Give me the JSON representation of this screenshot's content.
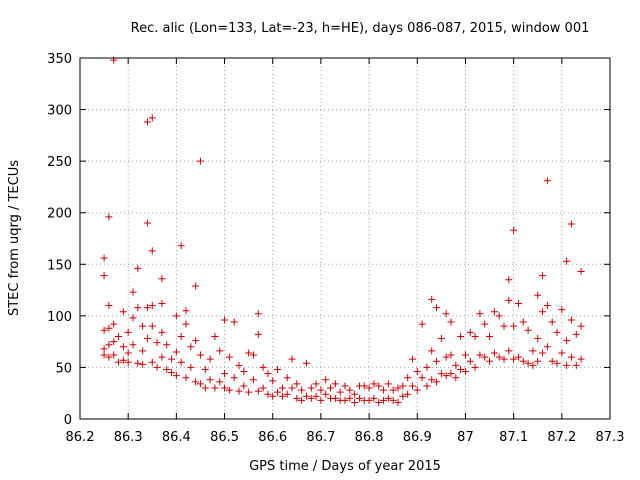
{
  "chart_data": {
    "type": "scatter",
    "title": "Rec. alic (Lon=133, Lat=-23, h=HE), days 086-087, 2015, window 001",
    "xlabel": "GPS time / Days of year 2015",
    "ylabel": "STEC from uqrg / TECUs",
    "xlim": [
      86.2,
      87.3
    ],
    "ylim": [
      0,
      350
    ],
    "xticks": [
      "86.2",
      "86.3",
      "86.4",
      "86.5",
      "86.6",
      "86.7",
      "86.8",
      "86.9",
      "87",
      "87.1",
      "87.2",
      "87.3"
    ],
    "yticks": [
      "0",
      "50",
      "100",
      "150",
      "200",
      "250",
      "300",
      "350"
    ],
    "grid": true,
    "marker": "+",
    "color": "#cc0000",
    "points": [
      [
        86.25,
        68
      ],
      [
        86.25,
        62
      ],
      [
        86.25,
        86
      ],
      [
        86.25,
        139
      ],
      [
        86.25,
        156
      ],
      [
        86.26,
        196
      ],
      [
        86.26,
        110
      ],
      [
        86.26,
        88
      ],
      [
        86.26,
        72
      ],
      [
        86.26,
        60
      ],
      [
        86.27,
        348
      ],
      [
        86.27,
        92
      ],
      [
        86.27,
        75
      ],
      [
        86.27,
        62
      ],
      [
        86.28,
        55
      ],
      [
        86.28,
        80
      ],
      [
        86.29,
        104
      ],
      [
        86.29,
        70
      ],
      [
        86.29,
        57
      ],
      [
        86.3,
        84
      ],
      [
        86.3,
        64
      ],
      [
        86.3,
        55
      ],
      [
        86.31,
        123
      ],
      [
        86.31,
        98
      ],
      [
        86.31,
        72
      ],
      [
        86.32,
        54
      ],
      [
        86.32,
        146
      ],
      [
        86.32,
        108
      ],
      [
        86.33,
        90
      ],
      [
        86.33,
        66
      ],
      [
        86.33,
        53
      ],
      [
        86.34,
        288
      ],
      [
        86.34,
        190
      ],
      [
        86.34,
        108
      ],
      [
        86.34,
        78
      ],
      [
        86.35,
        292
      ],
      [
        86.35,
        163
      ],
      [
        86.35,
        110
      ],
      [
        86.35,
        90
      ],
      [
        86.35,
        55
      ],
      [
        86.36,
        74
      ],
      [
        86.36,
        50
      ],
      [
        86.37,
        136
      ],
      [
        86.37,
        112
      ],
      [
        86.37,
        84
      ],
      [
        86.37,
        60
      ],
      [
        86.38,
        48
      ],
      [
        86.38,
        72
      ],
      [
        86.39,
        58
      ],
      [
        86.39,
        45
      ],
      [
        86.4,
        100
      ],
      [
        86.4,
        65
      ],
      [
        86.4,
        42
      ],
      [
        86.41,
        168
      ],
      [
        86.41,
        80
      ],
      [
        86.41,
        55
      ],
      [
        86.42,
        105
      ],
      [
        86.42,
        92
      ],
      [
        86.42,
        40
      ],
      [
        86.43,
        70
      ],
      [
        86.43,
        50
      ],
      [
        86.44,
        129
      ],
      [
        86.44,
        76
      ],
      [
        86.44,
        36
      ],
      [
        86.45,
        250
      ],
      [
        86.45,
        62
      ],
      [
        86.45,
        34
      ],
      [
        86.46,
        48
      ],
      [
        86.46,
        30
      ],
      [
        86.47,
        58
      ],
      [
        86.47,
        38
      ],
      [
        86.48,
        80
      ],
      [
        86.48,
        30
      ],
      [
        86.49,
        66
      ],
      [
        86.49,
        36
      ],
      [
        86.5,
        96
      ],
      [
        86.5,
        44
      ],
      [
        86.5,
        30
      ],
      [
        86.51,
        60
      ],
      [
        86.51,
        28
      ],
      [
        86.52,
        94
      ],
      [
        86.52,
        40
      ],
      [
        86.53,
        52
      ],
      [
        86.53,
        27
      ],
      [
        86.54,
        46
      ],
      [
        86.54,
        32
      ],
      [
        86.55,
        64
      ],
      [
        86.55,
        26
      ],
      [
        86.56,
        62
      ],
      [
        86.56,
        38
      ],
      [
        86.57,
        102
      ],
      [
        86.57,
        82
      ],
      [
        86.57,
        27
      ],
      [
        86.58,
        50
      ],
      [
        86.58,
        30
      ],
      [
        86.59,
        44
      ],
      [
        86.59,
        24
      ],
      [
        86.6,
        37
      ],
      [
        86.6,
        22
      ],
      [
        86.61,
        48
      ],
      [
        86.61,
        26
      ],
      [
        86.62,
        30
      ],
      [
        86.62,
        22
      ],
      [
        86.63,
        40
      ],
      [
        86.63,
        24
      ],
      [
        86.64,
        58
      ],
      [
        86.64,
        30
      ],
      [
        86.65,
        34
      ],
      [
        86.65,
        20
      ],
      [
        86.66,
        28
      ],
      [
        86.66,
        18
      ],
      [
        86.67,
        54
      ],
      [
        86.67,
        22
      ],
      [
        86.68,
        30
      ],
      [
        86.68,
        20
      ],
      [
        86.69,
        34
      ],
      [
        86.69,
        22
      ],
      [
        86.7,
        28
      ],
      [
        86.7,
        18
      ],
      [
        86.71,
        38
      ],
      [
        86.71,
        24
      ],
      [
        86.72,
        30
      ],
      [
        86.72,
        20
      ],
      [
        86.73,
        34
      ],
      [
        86.73,
        20
      ],
      [
        86.74,
        26
      ],
      [
        86.74,
        18
      ],
      [
        86.75,
        32
      ],
      [
        86.75,
        18
      ],
      [
        86.76,
        28
      ],
      [
        86.76,
        20
      ],
      [
        86.77,
        24
      ],
      [
        86.77,
        16
      ],
      [
        86.78,
        32
      ],
      [
        86.78,
        20
      ],
      [
        86.79,
        32
      ],
      [
        86.79,
        18
      ],
      [
        86.8,
        30
      ],
      [
        86.8,
        18
      ],
      [
        86.81,
        34
      ],
      [
        86.81,
        20
      ],
      [
        86.82,
        32
      ],
      [
        86.82,
        16
      ],
      [
        86.83,
        28
      ],
      [
        86.83,
        18
      ],
      [
        86.84,
        34
      ],
      [
        86.84,
        20
      ],
      [
        86.85,
        28
      ],
      [
        86.85,
        18
      ],
      [
        86.86,
        30
      ],
      [
        86.86,
        16
      ],
      [
        86.87,
        32
      ],
      [
        86.87,
        22
      ],
      [
        86.88,
        40
      ],
      [
        86.88,
        24
      ],
      [
        86.89,
        58
      ],
      [
        86.89,
        32
      ],
      [
        86.9,
        46
      ],
      [
        86.9,
        28
      ],
      [
        86.91,
        92
      ],
      [
        86.91,
        40
      ],
      [
        86.92,
        50
      ],
      [
        86.92,
        32
      ],
      [
        86.93,
        116
      ],
      [
        86.93,
        66
      ],
      [
        86.93,
        38
      ],
      [
        86.94,
        108
      ],
      [
        86.94,
        56
      ],
      [
        86.94,
        36
      ],
      [
        86.95,
        78
      ],
      [
        86.95,
        44
      ],
      [
        86.96,
        102
      ],
      [
        86.96,
        60
      ],
      [
        86.96,
        42
      ],
      [
        86.97,
        94
      ],
      [
        86.97,
        62
      ],
      [
        86.97,
        44
      ],
      [
        86.98,
        52
      ],
      [
        86.98,
        40
      ],
      [
        86.99,
        80
      ],
      [
        86.99,
        48
      ],
      [
        87.0,
        62
      ],
      [
        87.0,
        46
      ],
      [
        87.01,
        84
      ],
      [
        87.01,
        56
      ],
      [
        87.02,
        80
      ],
      [
        87.02,
        50
      ],
      [
        87.03,
        102
      ],
      [
        87.03,
        62
      ],
      [
        87.04,
        92
      ],
      [
        87.04,
        60
      ],
      [
        87.05,
        80
      ],
      [
        87.05,
        56
      ],
      [
        87.06,
        104
      ],
      [
        87.06,
        64
      ],
      [
        87.07,
        100
      ],
      [
        87.07,
        60
      ],
      [
        87.08,
        90
      ],
      [
        87.08,
        58
      ],
      [
        87.09,
        135
      ],
      [
        87.09,
        115
      ],
      [
        87.09,
        66
      ],
      [
        87.1,
        183
      ],
      [
        87.1,
        90
      ],
      [
        87.1,
        58
      ],
      [
        87.11,
        112
      ],
      [
        87.11,
        60
      ],
      [
        87.12,
        94
      ],
      [
        87.12,
        56
      ],
      [
        87.13,
        86
      ],
      [
        87.13,
        54
      ],
      [
        87.14,
        66
      ],
      [
        87.14,
        52
      ],
      [
        87.15,
        120
      ],
      [
        87.15,
        78
      ],
      [
        87.15,
        56
      ],
      [
        87.16,
        139
      ],
      [
        87.16,
        104
      ],
      [
        87.16,
        64
      ],
      [
        87.17,
        231
      ],
      [
        87.17,
        110
      ],
      [
        87.17,
        70
      ],
      [
        87.18,
        94
      ],
      [
        87.18,
        56
      ],
      [
        87.19,
        84
      ],
      [
        87.19,
        54
      ],
      [
        87.2,
        106
      ],
      [
        87.2,
        64
      ],
      [
        87.21,
        153
      ],
      [
        87.21,
        76
      ],
      [
        87.21,
        52
      ],
      [
        87.22,
        189
      ],
      [
        87.22,
        96
      ],
      [
        87.22,
        60
      ],
      [
        87.23,
        82
      ],
      [
        87.23,
        52
      ],
      [
        87.24,
        143
      ],
      [
        87.24,
        90
      ],
      [
        87.24,
        58
      ]
    ]
  }
}
